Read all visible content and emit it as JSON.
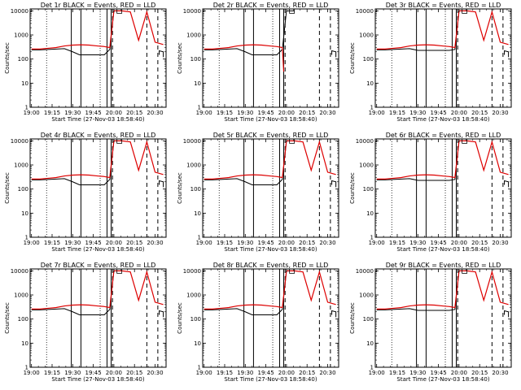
{
  "figure": {
    "panels": [
      {
        "title": "Det 1r BLACK = Events, RED = LLD",
        "event_gap": "dropout",
        "red_mode": "full"
      },
      {
        "title": "Det 2r BLACK = Events, RED = LLD",
        "event_gap": "dropout",
        "red_mode": "truncated"
      },
      {
        "title": "Det 3r BLACK = Events, RED = LLD",
        "event_gap": "step",
        "red_mode": "full"
      },
      {
        "title": "Det 4r BLACK = Events, RED = LLD",
        "event_gap": "dropout",
        "red_mode": "full"
      },
      {
        "title": "Det 5r BLACK = Events, RED = LLD",
        "event_gap": "dropout",
        "red_mode": "full"
      },
      {
        "title": "Det 6r BLACK = Events, RED = LLD",
        "event_gap": "step",
        "red_mode": "full"
      },
      {
        "title": "Det 7r BLACK = Events, RED = LLD",
        "event_gap": "dropout",
        "red_mode": "full"
      },
      {
        "title": "Det 8r BLACK = Events, RED = LLD",
        "event_gap": "dropout",
        "red_mode": "full"
      },
      {
        "title": "Det 9r BLACK = Events, RED = LLD",
        "event_gap": "step",
        "red_mode": "full"
      }
    ],
    "xlabel": "Start Time (27-Nov-03 18:58:40)",
    "ylabel": "Counts/sec",
    "xtick_labels": [
      "19:00",
      "19:15",
      "19:30",
      "19:45",
      "20:00",
      "20:15",
      "20:30"
    ],
    "ytick_labels": [
      "1",
      "10",
      "100",
      "1000",
      "10000"
    ],
    "colors": {
      "events": "#000000",
      "lld": "#dd0000"
    }
  },
  "chart_data": {
    "type": "line",
    "layout": "3x3 grid of identical-format panels",
    "x_unit": "time (HH:MM)",
    "xlim": [
      "18:59",
      "20:38"
    ],
    "x_ticks": [
      "19:00",
      "19:15",
      "19:30",
      "19:45",
      "20:00",
      "20:15",
      "20:30"
    ],
    "y_scale": "log",
    "ylim": [
      1,
      12000
    ],
    "y_ticks": [
      1,
      10,
      100,
      1000,
      10000
    ],
    "series": [
      {
        "name": "Events",
        "color": "#000000",
        "x": [
          "19:00",
          "19:06",
          "19:12",
          "19:18",
          "19:24",
          "19:30",
          "19:35",
          "19:42",
          "19:48",
          "19:53",
          "19:57",
          "20:00",
          "20:03",
          "20:06"
        ],
        "y": [
          240,
          240,
          250,
          260,
          270,
          200,
          150,
          150,
          150,
          150,
          250,
          10000,
          10000,
          10000
        ]
      },
      {
        "name": "LLD",
        "color": "#dd0000",
        "x": [
          "19:00",
          "19:06",
          "19:12",
          "19:18",
          "19:24",
          "19:30",
          "19:36",
          "19:42",
          "19:48",
          "19:53",
          "19:57",
          "20:00",
          "20:06",
          "20:12",
          "20:18",
          "20:24",
          "20:30",
          "20:36"
        ],
        "y": [
          260,
          260,
          280,
          300,
          350,
          380,
          390,
          380,
          350,
          330,
          300,
          10000,
          10000,
          9000,
          600,
          9000,
          500,
          400
        ]
      }
    ],
    "vertical_lines": {
      "solid": [
        "19:29",
        "19:36",
        "19:55",
        "19:58"
      ],
      "dotted": [
        "19:11",
        "19:50"
      ],
      "dashed": [
        "19:59",
        "20:24",
        "20:32"
      ]
    }
  }
}
